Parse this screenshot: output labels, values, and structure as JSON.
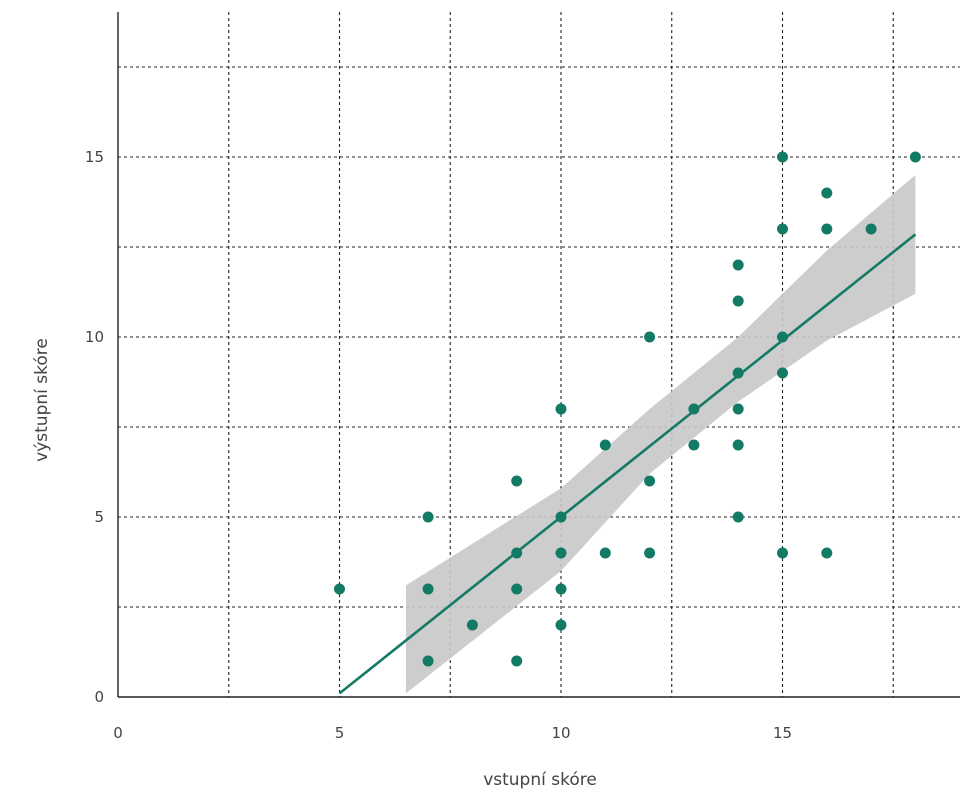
{
  "chart_data": {
    "type": "scatter",
    "xlabel": "vstupní skóre",
    "ylabel": "výstupní skóre",
    "xlim": [
      0,
      19
    ],
    "ylim": [
      0,
      19
    ],
    "x_ticks": [
      0,
      5,
      10,
      15
    ],
    "y_ticks": [
      0,
      5,
      10,
      15
    ],
    "x_grid": [
      2.5,
      5,
      7.5,
      10,
      12.5,
      15,
      17.5
    ],
    "y_grid": [
      2.5,
      5,
      7.5,
      10,
      12.5,
      15,
      17.5
    ],
    "grid": true,
    "points": [
      {
        "x": 5,
        "y": 3
      },
      {
        "x": 7,
        "y": 5
      },
      {
        "x": 7,
        "y": 3
      },
      {
        "x": 7,
        "y": 1
      },
      {
        "x": 8,
        "y": 2
      },
      {
        "x": 9,
        "y": 6
      },
      {
        "x": 9,
        "y": 4
      },
      {
        "x": 9,
        "y": 3
      },
      {
        "x": 9,
        "y": 1
      },
      {
        "x": 10,
        "y": 8
      },
      {
        "x": 10,
        "y": 5
      },
      {
        "x": 10,
        "y": 4
      },
      {
        "x": 10,
        "y": 3
      },
      {
        "x": 10,
        "y": 2
      },
      {
        "x": 11,
        "y": 7
      },
      {
        "x": 11,
        "y": 4
      },
      {
        "x": 12,
        "y": 10
      },
      {
        "x": 12,
        "y": 6
      },
      {
        "x": 12,
        "y": 4
      },
      {
        "x": 13,
        "y": 8
      },
      {
        "x": 13,
        "y": 7
      },
      {
        "x": 14,
        "y": 12
      },
      {
        "x": 14,
        "y": 11
      },
      {
        "x": 14,
        "y": 9
      },
      {
        "x": 14,
        "y": 8
      },
      {
        "x": 14,
        "y": 7
      },
      {
        "x": 14,
        "y": 5
      },
      {
        "x": 15,
        "y": 15
      },
      {
        "x": 15,
        "y": 13
      },
      {
        "x": 15,
        "y": 10
      },
      {
        "x": 15,
        "y": 9
      },
      {
        "x": 15,
        "y": 4
      },
      {
        "x": 16,
        "y": 14
      },
      {
        "x": 16,
        "y": 13
      },
      {
        "x": 16,
        "y": 4
      },
      {
        "x": 17,
        "y": 13
      },
      {
        "x": 18,
        "y": 15
      }
    ],
    "regression_line": {
      "x": [
        5,
        18
      ],
      "y": [
        0.1,
        12.85
      ]
    },
    "confidence_band": {
      "x": [
        6.5,
        10,
        12,
        14,
        16,
        18
      ],
      "upper": [
        3.1,
        5.8,
        8.0,
        10.0,
        12.4,
        14.5
      ],
      "lower": [
        0.1,
        3.5,
        6.2,
        8.2,
        9.9,
        11.2
      ]
    },
    "colors": {
      "points": "#137a66",
      "line": "#137a66",
      "band": "#c8c8c8",
      "grid": "#222222",
      "text": "#444444"
    }
  }
}
